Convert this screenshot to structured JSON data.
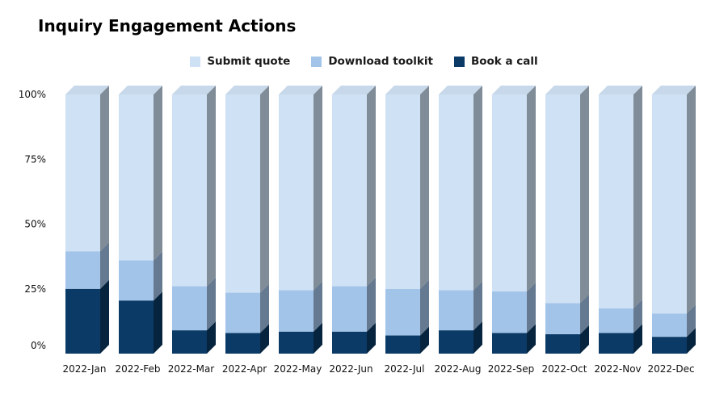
{
  "chart_data": {
    "type": "bar",
    "stacked": true,
    "normalized": true,
    "three_d": true,
    "title": "Inquiry Engagement Actions",
    "xlabel": "",
    "ylabel": "",
    "categories": [
      "2022-Jan",
      "2022-Feb",
      "2022-Mar",
      "2022-Apr",
      "2022-May",
      "2022-Jun",
      "2022-Jul",
      "2022-Aug",
      "2022-Sep",
      "2022-Oct",
      "2022-Nov",
      "2022-Dec"
    ],
    "series": [
      {
        "name": "Book a call",
        "color": "#0b3a66",
        "values": [
          25,
          20.5,
          9,
          8,
          8.5,
          8.5,
          7,
          9,
          8,
          7.5,
          8,
          6.5
        ]
      },
      {
        "name": "Download toolkit",
        "color": "#a3c4e9",
        "values": [
          14.5,
          15.5,
          17,
          15.5,
          16,
          17.5,
          18,
          15.5,
          16,
          12,
          9.5,
          9
        ]
      },
      {
        "name": "Submit quote",
        "color": "#cfe1f4",
        "values": [
          60.5,
          64,
          74,
          76.5,
          75.5,
          74,
          75,
          75.5,
          76,
          80.5,
          82.5,
          84.5
        ]
      }
    ],
    "legend_order": [
      "Submit quote",
      "Download toolkit",
      "Book a call"
    ],
    "ylim": [
      0,
      100
    ],
    "yticks": [
      "0%",
      "25%",
      "50%",
      "75%",
      "100%"
    ],
    "ytick_values": [
      0,
      25,
      50,
      75,
      100
    ],
    "legend_position": "top-center",
    "grid": false
  }
}
